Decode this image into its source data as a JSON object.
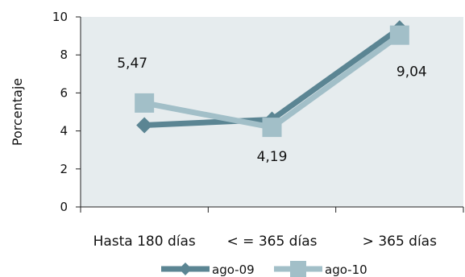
{
  "chart_data": {
    "type": "line",
    "categories": [
      "Hasta 180 días",
      "< = 365 días",
      "> 365 días"
    ],
    "ylabel": "Porcentaje",
    "ylim": [
      0,
      10
    ],
    "yticks": [
      "0",
      "2",
      "4",
      "6",
      "8",
      "10"
    ],
    "grid": false,
    "legend": "bottom",
    "plot_background": "#e6ecee",
    "series": [
      {
        "name": "ago-09",
        "values": [
          4.3,
          4.6,
          9.4
        ],
        "color": "#5b8593",
        "marker": "diamond",
        "labels": [
          "",
          "",
          ""
        ]
      },
      {
        "name": "ago-10",
        "values": [
          5.47,
          4.19,
          9.04
        ],
        "color": "#a2bfc8",
        "marker": "square",
        "labels": [
          "5,47",
          "4,19",
          "9,04"
        ]
      }
    ]
  }
}
